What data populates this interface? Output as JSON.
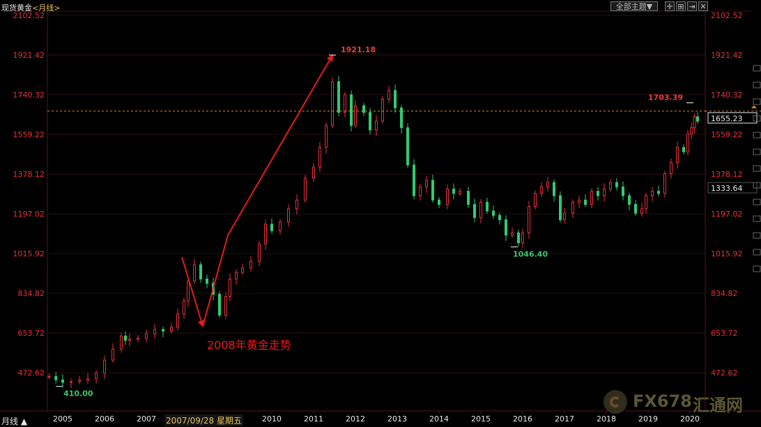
{
  "header": {
    "symbol": "现货黄金",
    "period": "<月线>",
    "theme_button": "全部主题▼"
  },
  "bottom_bar": {
    "mode_label": "月线 ▲",
    "cursor_date": "2007/09/28 星期五"
  },
  "watermark": {
    "text": "FX678",
    "cn": "汇通网"
  },
  "colors": {
    "up": "#e8303a",
    "down": "#2ecc71",
    "axis_text": "#e8303a",
    "grid": "#2a0f0f",
    "ref_line": "#d8893a",
    "annotation": "#e81a1a"
  },
  "chart_data": {
    "type": "candlestick",
    "title": "",
    "xlabel": "",
    "ylabel": "",
    "ylim": [
      380,
      2120
    ],
    "y_ticks": [
      2102.52,
      1921.42,
      1740.32,
      1559.22,
      1378.12,
      1197.02,
      1015.92,
      834.82,
      653.72,
      472.62
    ],
    "x_ticks": [
      "2005",
      "2006",
      "2007",
      "2010",
      "2011",
      "2012",
      "2013",
      "2014",
      "2015",
      "2016",
      "2017",
      "2018",
      "2019",
      "2020"
    ],
    "ref_line": {
      "value": 1666
    },
    "price_boxes": [
      "1655.23",
      "1333.64"
    ],
    "annotations": [
      {
        "label": "1921.18",
        "date": "2011.45",
        "value": 1921.18,
        "pos": "above"
      },
      {
        "label": "1703.39",
        "date": "2020.0",
        "value": 1703.39,
        "pos": "above"
      },
      {
        "label": "1046.40",
        "date": "2015.8",
        "value": 1046.4,
        "pos": "below"
      },
      {
        "label": "410.00",
        "date": "2004.9",
        "value": 410.0,
        "pos": "below"
      },
      {
        "label": "2008年黄金走势",
        "date": "2008.45",
        "value": 580
      }
    ],
    "arrows": [
      [
        [
          2007.85,
          1000
        ],
        [
          2008.35,
          685
        ]
      ],
      [
        [
          2008.35,
          685
        ],
        [
          2008.95,
          1100
        ]
      ],
      [
        [
          2008.95,
          1100
        ],
        [
          2011.45,
          1920
        ]
      ]
    ],
    "series": [
      {
        "name": "",
        "values": [
          [
            2004.6,
            455
          ],
          [
            2004.8,
            440
          ],
          [
            2005.0,
            428
          ],
          [
            2005.2,
            432
          ],
          [
            2005.4,
            438
          ],
          [
            2005.6,
            445
          ],
          [
            2005.8,
            470
          ],
          [
            2006.0,
            530
          ],
          [
            2006.2,
            580
          ],
          [
            2006.4,
            640
          ],
          [
            2006.5,
            620
          ],
          [
            2006.6,
            625
          ],
          [
            2006.8,
            630
          ],
          [
            2007.0,
            650
          ],
          [
            2007.2,
            670
          ],
          [
            2007.4,
            662
          ],
          [
            2007.6,
            680
          ],
          [
            2007.75,
            740
          ],
          [
            2007.9,
            800
          ],
          [
            2008.0,
            890
          ],
          [
            2008.15,
            965
          ],
          [
            2008.3,
            900
          ],
          [
            2008.45,
            880
          ],
          [
            2008.6,
            830
          ],
          [
            2008.75,
            735
          ],
          [
            2008.9,
            820
          ],
          [
            2009.0,
            900
          ],
          [
            2009.15,
            930
          ],
          [
            2009.3,
            950
          ],
          [
            2009.5,
            980
          ],
          [
            2009.7,
            1060
          ],
          [
            2009.85,
            1150
          ],
          [
            2010.0,
            1120
          ],
          [
            2010.2,
            1160
          ],
          [
            2010.4,
            1220
          ],
          [
            2010.6,
            1260
          ],
          [
            2010.8,
            1360
          ],
          [
            2011.0,
            1410
          ],
          [
            2011.15,
            1500
          ],
          [
            2011.3,
            1600
          ],
          [
            2011.45,
            1800
          ],
          [
            2011.6,
            1660
          ],
          [
            2011.75,
            1740
          ],
          [
            2011.9,
            1600
          ],
          [
            2012.0,
            1690
          ],
          [
            2012.2,
            1660
          ],
          [
            2012.35,
            1580
          ],
          [
            2012.5,
            1620
          ],
          [
            2012.65,
            1720
          ],
          [
            2012.8,
            1760
          ],
          [
            2012.95,
            1680
          ],
          [
            2013.1,
            1590
          ],
          [
            2013.25,
            1420
          ],
          [
            2013.4,
            1280
          ],
          [
            2013.55,
            1320
          ],
          [
            2013.7,
            1350
          ],
          [
            2013.85,
            1260
          ],
          [
            2014.0,
            1240
          ],
          [
            2014.2,
            1310
          ],
          [
            2014.35,
            1290
          ],
          [
            2014.5,
            1300
          ],
          [
            2014.7,
            1240
          ],
          [
            2014.85,
            1180
          ],
          [
            2015.0,
            1250
          ],
          [
            2015.15,
            1210
          ],
          [
            2015.3,
            1190
          ],
          [
            2015.45,
            1170
          ],
          [
            2015.6,
            1100
          ],
          [
            2015.75,
            1110
          ],
          [
            2015.9,
            1065
          ],
          [
            2016.0,
            1110
          ],
          [
            2016.15,
            1230
          ],
          [
            2016.3,
            1290
          ],
          [
            2016.45,
            1320
          ],
          [
            2016.6,
            1340
          ],
          [
            2016.75,
            1280
          ],
          [
            2016.9,
            1170
          ],
          [
            2017.0,
            1200
          ],
          [
            2017.2,
            1250
          ],
          [
            2017.35,
            1260
          ],
          [
            2017.5,
            1240
          ],
          [
            2017.65,
            1300
          ],
          [
            2017.8,
            1280
          ],
          [
            2017.95,
            1310
          ],
          [
            2018.1,
            1340
          ],
          [
            2018.25,
            1320
          ],
          [
            2018.4,
            1280
          ],
          [
            2018.55,
            1240
          ],
          [
            2018.7,
            1200
          ],
          [
            2018.85,
            1220
          ],
          [
            2018.95,
            1280
          ],
          [
            2019.1,
            1300
          ],
          [
            2019.25,
            1290
          ],
          [
            2019.4,
            1380
          ],
          [
            2019.55,
            1430
          ],
          [
            2019.7,
            1500
          ],
          [
            2019.85,
            1480
          ],
          [
            2019.95,
            1560
          ],
          [
            2020.05,
            1590
          ],
          [
            2020.15,
            1640
          ],
          [
            2020.25,
            1620
          ]
        ]
      }
    ]
  }
}
